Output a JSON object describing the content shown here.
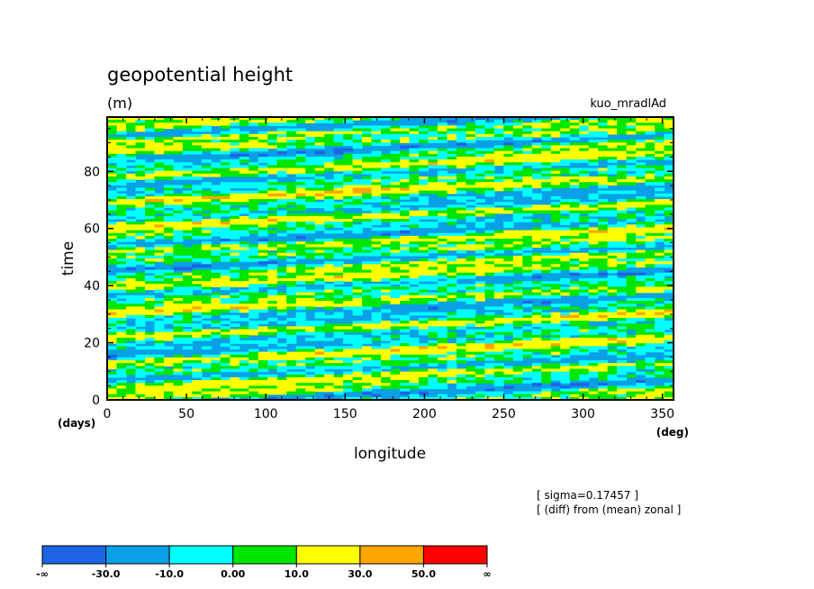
{
  "chart_data": {
    "type": "heatmap",
    "title": "geopotential height",
    "units": "(m)",
    "run_label": "kuo_mradlAd",
    "xlabel": "longitude",
    "ylabel": "time",
    "x_unit": "(deg)",
    "y_unit": "(days)",
    "xlim": [
      0,
      357
    ],
    "ylim": [
      0,
      99
    ],
    "xticks": [
      0,
      50,
      100,
      150,
      200,
      250,
      300,
      350
    ],
    "yticks": [
      0,
      20,
      40,
      60,
      80
    ],
    "notes": [
      "[ sigma=0.17457 ]",
      "[ (diff) from (mean) zonal ]"
    ],
    "colorbar": {
      "levels": [
        "-∞",
        "-30.0",
        "-10.0",
        "0.00",
        "10.0",
        "30.0",
        "50.0",
        "∞"
      ],
      "colors": [
        "#1e64e6",
        "#0aa0e6",
        "#00ffff",
        "#00e600",
        "#ffff00",
        "#ffa500",
        "#ff0000"
      ]
    }
  }
}
